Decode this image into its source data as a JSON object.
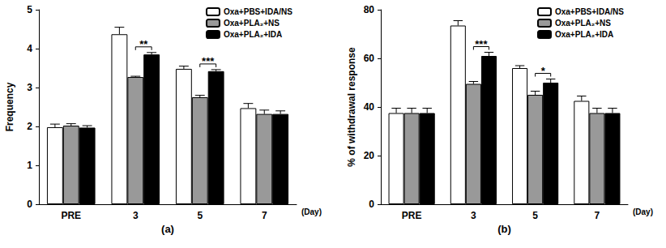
{
  "chart_data": [
    {
      "type": "bar",
      "caption": "(a)",
      "ylabel": "Frequency",
      "xlabel": "(Day)",
      "categories": [
        "PRE",
        "3",
        "5",
        "7"
      ],
      "ylim": [
        0,
        5
      ],
      "yticks": [
        0,
        1,
        2,
        3,
        4,
        5
      ],
      "grid": false,
      "legend": "upper right",
      "series": [
        {
          "name": "Oxa+PBS+IDA/NS",
          "color": "#ffffff",
          "values": [
            1.98,
            4.37,
            3.48,
            2.47
          ],
          "errors": [
            0.08,
            0.18,
            0.07,
            0.12
          ]
        },
        {
          "name": "Oxa+PLA₂+NS",
          "color": "#999999",
          "values": [
            2.02,
            3.27,
            2.75,
            2.32
          ],
          "errors": [
            0.05,
            0.02,
            0.05,
            0.1
          ]
        },
        {
          "name": "Oxa+PLA₂+IDA",
          "color": "#000000",
          "values": [
            1.97,
            3.85,
            3.42,
            2.32
          ],
          "errors": [
            0.05,
            0.05,
            0.04,
            0.08
          ]
        }
      ],
      "annotations": [
        {
          "category": "3",
          "series": [
            "Oxa+PLA₂+NS",
            "Oxa+PLA₂+IDA"
          ],
          "text": "**"
        },
        {
          "category": "5",
          "series": [
            "Oxa+PLA₂+NS",
            "Oxa+PLA₂+IDA"
          ],
          "text": "***"
        }
      ]
    },
    {
      "type": "bar",
      "caption": "(b)",
      "ylabel": "% of withdrawal response",
      "xlabel": "(Day)",
      "categories": [
        "PRE",
        "3",
        "5",
        "7"
      ],
      "ylim": [
        0,
        80
      ],
      "yticks": [
        0,
        20,
        40,
        60,
        80
      ],
      "grid": false,
      "legend": "upper right",
      "series": [
        {
          "name": "Oxa+PBS+IDA/NS",
          "color": "#ffffff",
          "values": [
            37.5,
            73.5,
            56,
            42.5
          ],
          "errors": [
            2,
            2,
            1,
            2
          ]
        },
        {
          "name": "Oxa+PLA₂+NS",
          "color": "#999999",
          "values": [
            37.5,
            49.5,
            45,
            37.5
          ],
          "errors": [
            2,
            1,
            1.5,
            2
          ]
        },
        {
          "name": "Oxa+PLA₂+IDA",
          "color": "#000000",
          "values": [
            37.5,
            61,
            50,
            37.5
          ],
          "errors": [
            2,
            1.5,
            1.5,
            2
          ]
        }
      ],
      "annotations": [
        {
          "category": "3",
          "series": [
            "Oxa+PLA₂+NS",
            "Oxa+PLA₂+IDA"
          ],
          "text": "***"
        },
        {
          "category": "5",
          "series": [
            "Oxa+PLA₂+NS",
            "Oxa+PLA₂+IDA"
          ],
          "text": "*"
        }
      ]
    }
  ]
}
